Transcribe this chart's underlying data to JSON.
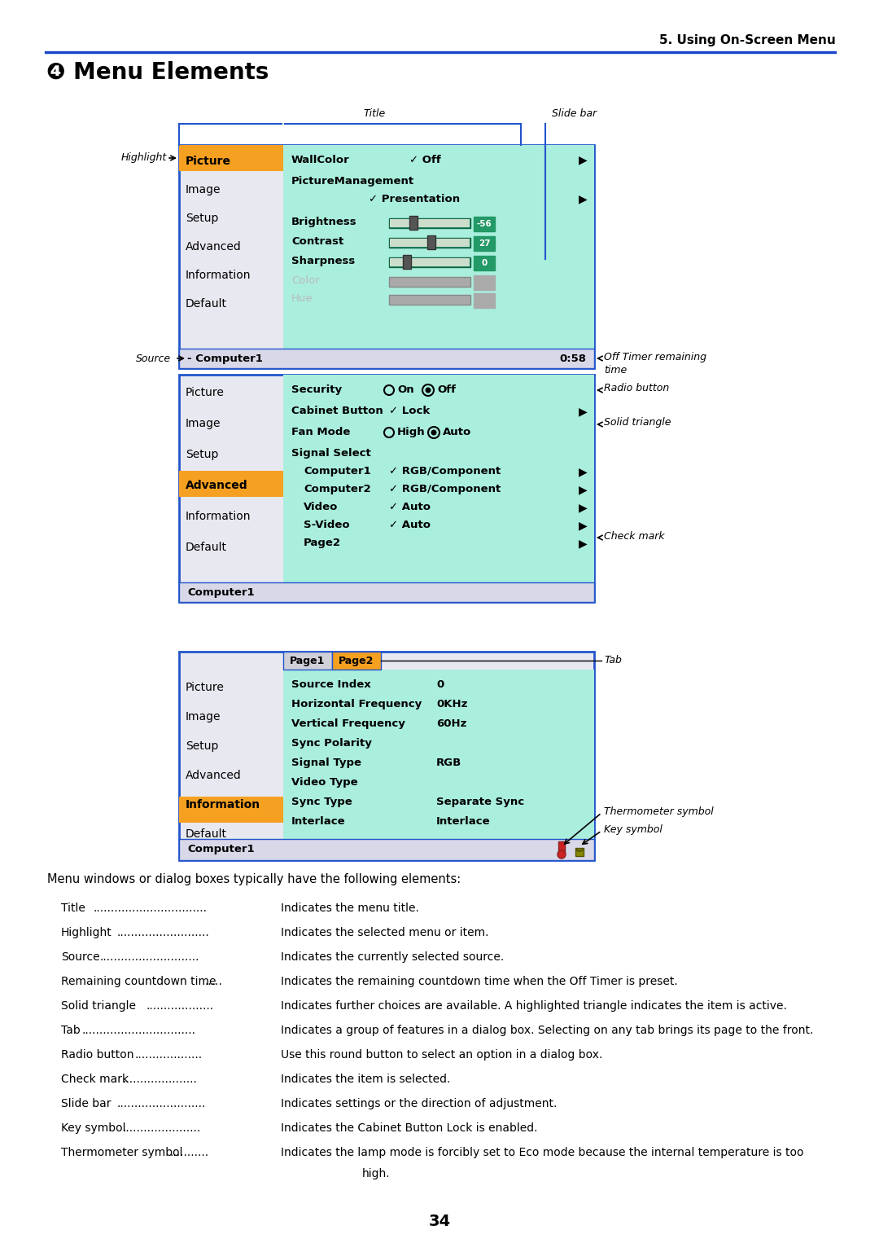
{
  "page_header": "5. Using On-Screen Menu",
  "section_title": "❹ Menu Elements",
  "header_line_color": "#1a3fcc",
  "bg_color": "#ffffff",
  "menu1": {
    "left_items": [
      "Picture",
      "Image",
      "Setup",
      "Advanced",
      "Information",
      "Default"
    ],
    "highlight_item": "Picture",
    "highlight_color": "#f5a623",
    "left_bg": "#e6e6f0",
    "content_bg": "#9eeedd",
    "footer_source": "- Computer1",
    "footer_timer": "0:58"
  },
  "menu2": {
    "left_items": [
      "Picture",
      "Image",
      "Setup",
      "Advanced",
      "Information",
      "Default"
    ],
    "highlight_item": "Advanced",
    "highlight_color": "#f5a623",
    "left_bg": "#e6e6f0",
    "content_bg": "#9eeedd",
    "footer_source": "Computer1"
  },
  "menu3": {
    "left_items": [
      "Picture",
      "Image",
      "Setup",
      "Advanced",
      "Information",
      "Default"
    ],
    "highlight_item": "Information",
    "highlight_color": "#f5a623",
    "left_bg": "#e6e6f0",
    "content_bg": "#9eeedd",
    "footer_source": "Computer1"
  },
  "body_items": [
    {
      "term": "Title",
      "dots": 32,
      "desc": "Indicates the menu title.",
      "wrap": false
    },
    {
      "term": "Highlight",
      "dots": 26,
      "desc": "Indicates the selected menu or item.",
      "wrap": false
    },
    {
      "term": "Source",
      "dots": 28,
      "desc": "Indicates the currently selected source.",
      "wrap": false
    },
    {
      "term": "Remaining countdown time",
      "dots": 5,
      "desc": "Indicates the remaining countdown time when the Off Timer is preset.",
      "wrap": false
    },
    {
      "term": "Solid triangle",
      "dots": 19,
      "desc": "Indicates further choices are available. A highlighted triangle indicates the item is active.",
      "wrap": false
    },
    {
      "term": "Tab",
      "dots": 32,
      "desc": "Indicates a group of features in a dialog box. Selecting on any tab brings its page to the front.",
      "wrap": false
    },
    {
      "term": "Radio button",
      "dots": 19,
      "desc": "Use this round button to select an option in a dialog box.",
      "wrap": false
    },
    {
      "term": "Check mark",
      "dots": 21,
      "desc": "Indicates the item is selected.",
      "wrap": false
    },
    {
      "term": "Slide bar",
      "dots": 25,
      "desc": "Indicates settings or the direction of adjustment.",
      "wrap": false
    },
    {
      "term": "Key symbol",
      "dots": 22,
      "desc": "Indicates the Cabinet Button Lock is enabled.",
      "wrap": false
    },
    {
      "term": "Thermometer symbol",
      "dots": 11,
      "desc": "Indicates the lamp mode is forcibly set to Eco mode because the internal temperature is too",
      "desc2": "high.",
      "wrap": true
    }
  ],
  "intro_text": "Menu windows or dialog boxes typically have the following elements:",
  "page_number": "34"
}
